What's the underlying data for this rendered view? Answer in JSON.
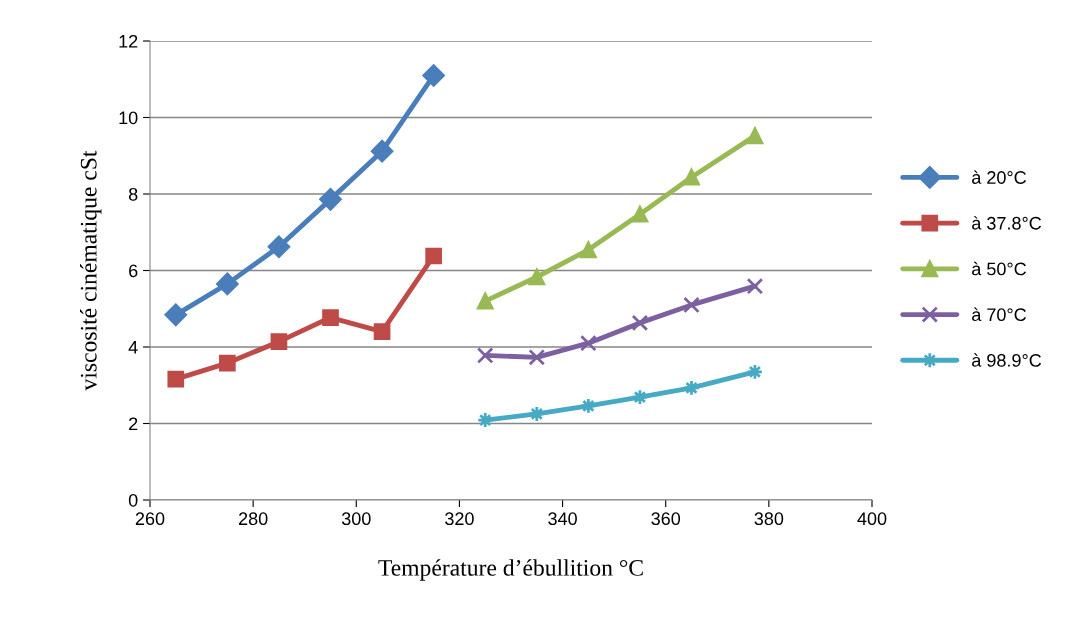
{
  "chart_data": {
    "type": "line",
    "xlabel": "Température d’ébullition °C",
    "ylabel": "viscosité cinématique cSt",
    "xlim": [
      260,
      400
    ],
    "xticks": [
      260,
      280,
      300,
      320,
      340,
      360,
      380,
      400
    ],
    "ylim": [
      0,
      12
    ],
    "yticks": [
      0,
      2,
      4,
      6,
      8,
      10,
      12
    ],
    "grid": "y",
    "legend": "right",
    "line_style": "solid",
    "series": [
      {
        "name": "à 20°C",
        "color": "#4a7ebb",
        "marker": "diamond",
        "x": [
          265,
          275,
          285,
          295,
          305,
          315
        ],
        "values": [
          4.84,
          5.65,
          6.62,
          7.86,
          9.12,
          11.1
        ]
      },
      {
        "name": "à 37.8°C",
        "color": "#be4b48",
        "marker": "square",
        "x": [
          265,
          275,
          285,
          295,
          305,
          315
        ],
        "values": [
          3.16,
          3.58,
          4.14,
          4.77,
          4.4,
          6.38
        ]
      },
      {
        "name": "à 50°C",
        "color": "#98b954",
        "marker": "triangle",
        "x": [
          325,
          335,
          345,
          355,
          365,
          377.3
        ],
        "values": [
          5.2,
          5.83,
          6.54,
          7.47,
          8.44,
          9.52
        ]
      },
      {
        "name": "à 70°C",
        "color": "#7d60a0",
        "marker": "cross",
        "x": [
          325,
          335,
          345,
          355,
          365,
          377.3
        ],
        "values": [
          3.78,
          3.73,
          4.1,
          4.63,
          5.1,
          5.59
        ]
      },
      {
        "name": "à 98.9°C",
        "color": "#46aac5",
        "marker": "star",
        "x": [
          325,
          335,
          345,
          355,
          365,
          377.3
        ],
        "values": [
          2.09,
          2.25,
          2.46,
          2.69,
          2.93,
          3.35
        ]
      }
    ]
  }
}
